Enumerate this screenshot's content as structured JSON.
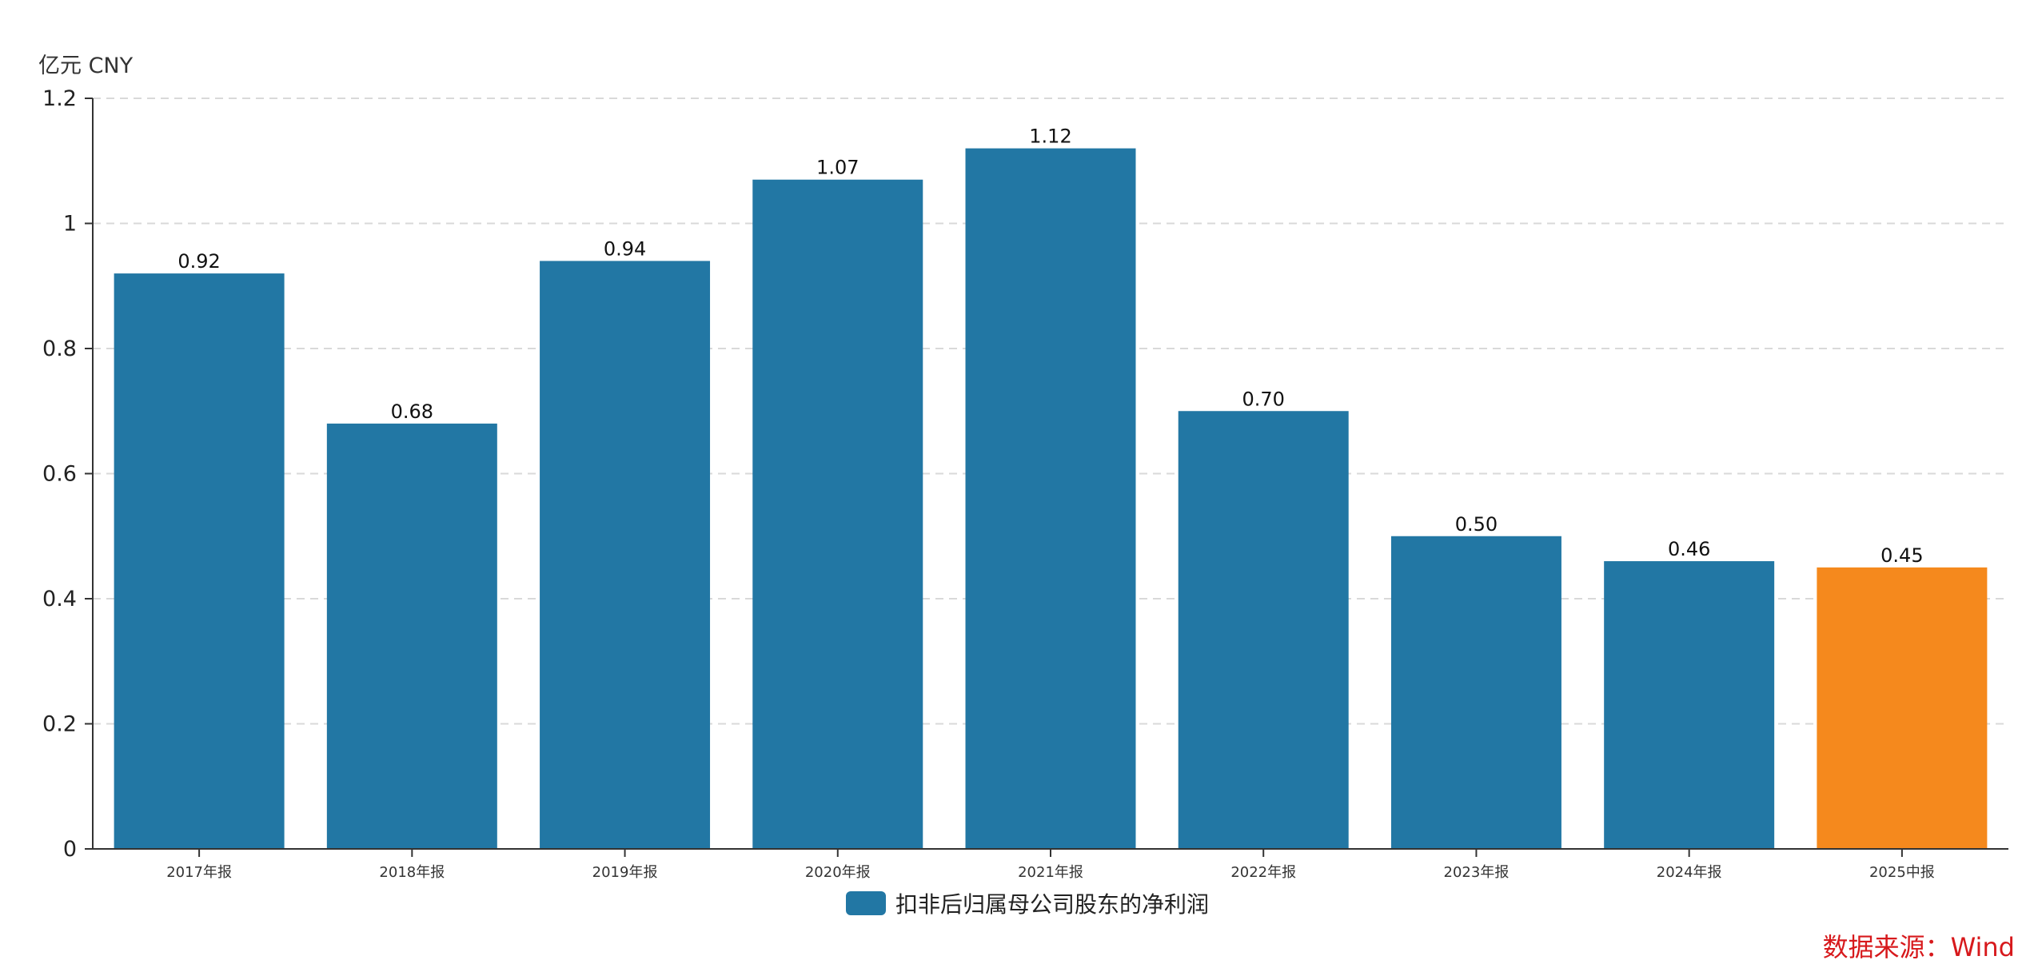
{
  "unit_label": "亿元  CNY",
  "source_label": "数据来源：Wind",
  "colors": {
    "primary": "#2277a4",
    "highlight": "#f5891d",
    "source_text": "#d7191c",
    "grid": "#d9d9d9"
  },
  "legend": {
    "label": "扣非后归属母公司股东的净利润"
  },
  "chart_data": {
    "type": "bar",
    "title": "",
    "xlabel": "",
    "ylabel": "亿元  CNY",
    "categories": [
      "2017年报",
      "2018年报",
      "2019年报",
      "2020年报",
      "2021年报",
      "2022年报",
      "2023年报",
      "2024年报",
      "2025中报"
    ],
    "series": [
      {
        "name": "扣非后归属母公司股东的净利润",
        "values": [
          0.92,
          0.68,
          0.94,
          1.07,
          1.12,
          0.7,
          0.5,
          0.46,
          0.45
        ],
        "value_labels": [
          "0.92",
          "0.68",
          "0.94",
          "1.07",
          "1.12",
          "0.70",
          "0.50",
          "0.46",
          "0.45"
        ]
      }
    ],
    "highlight_index": 8,
    "ylim": [
      0,
      1.2
    ],
    "yticks": [
      0,
      0.2,
      0.4,
      0.6,
      0.8,
      1,
      1.2
    ],
    "ytick_labels": [
      "0",
      "0.2",
      "0.4",
      "0.6",
      "0.8",
      "1",
      "1.2"
    ],
    "grid": true,
    "grid_style": "dashed-horizontal",
    "legend_position": "bottom-center"
  }
}
